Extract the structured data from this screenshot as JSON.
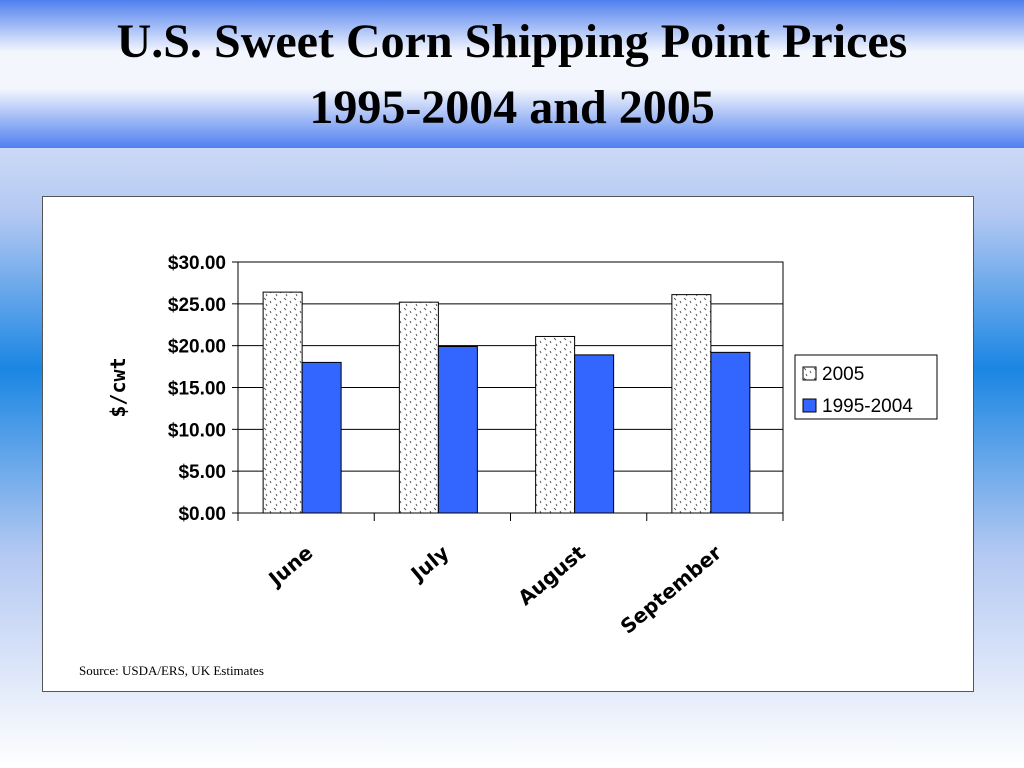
{
  "title_line1": "U.S. Sweet Corn Shipping Point Prices",
  "title_line2": "1995-2004 and 2005",
  "source": "Source:  USDA/ERS, UK Estimates",
  "colors": {
    "series_2005": "#ffffff",
    "series_1995_2004": "#3366ff"
  },
  "chart_data": {
    "type": "bar",
    "categories": [
      "June",
      "July",
      "August",
      "September"
    ],
    "series": [
      {
        "name": "2005",
        "values": [
          26.4,
          25.2,
          21.1,
          26.1
        ]
      },
      {
        "name": "1995-2004",
        "values": [
          18.0,
          19.9,
          18.9,
          19.2
        ]
      }
    ],
    "ylabel": "$/cwt",
    "xlabel": "",
    "ylim": [
      0,
      30
    ],
    "yticks": [
      "$0.00",
      "$5.00",
      "$10.00",
      "$15.00",
      "$20.00",
      "$25.00",
      "$30.00"
    ],
    "grid": true,
    "legend": "right"
  }
}
